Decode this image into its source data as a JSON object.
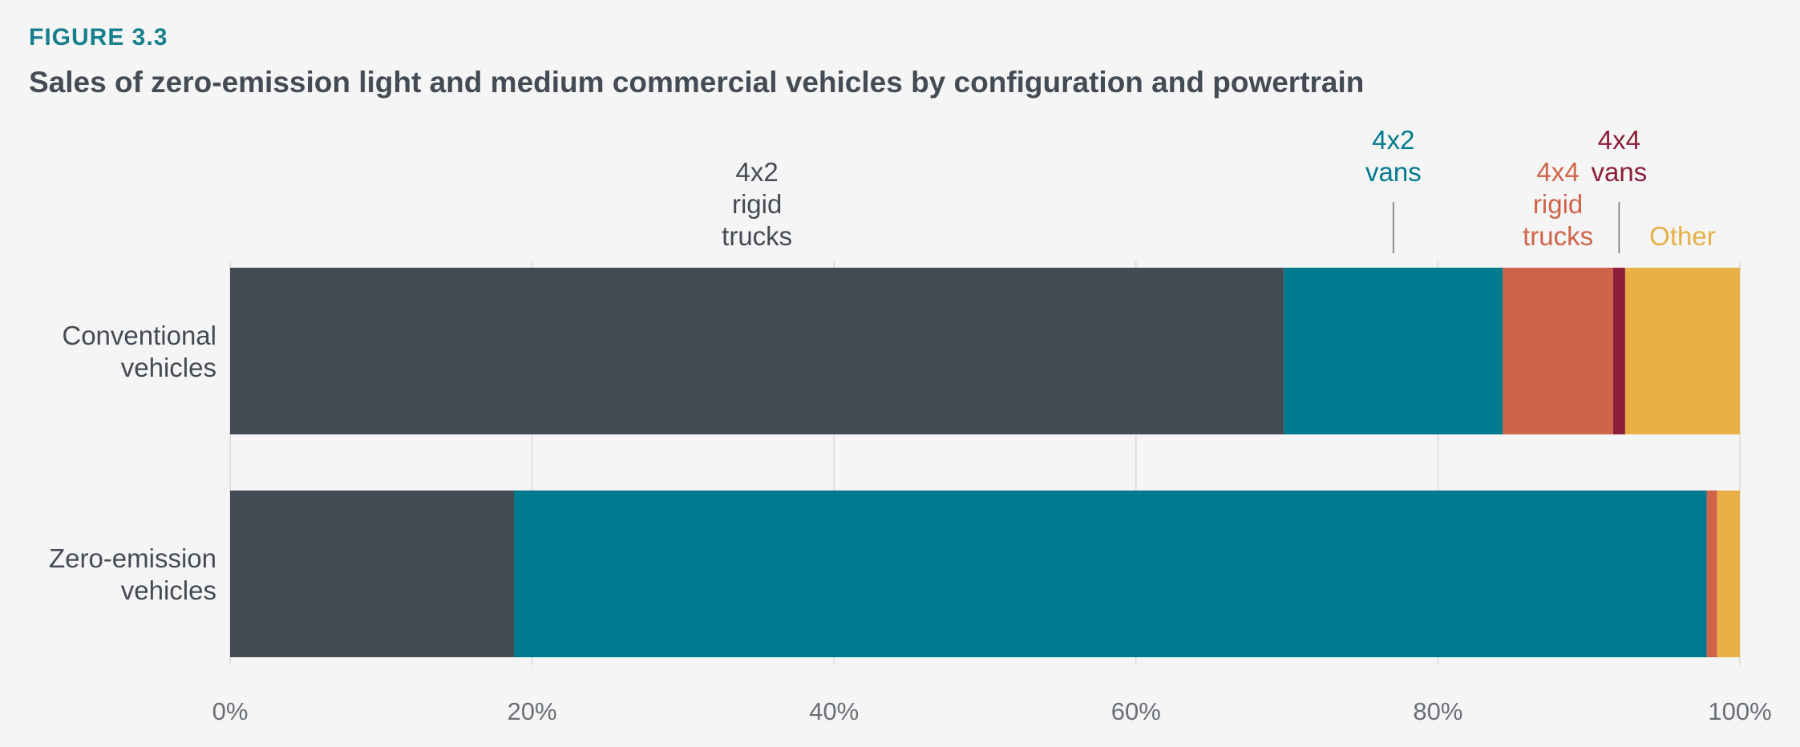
{
  "figure_label": "FIGURE 3.3",
  "title": "Sales of zero-emission light and medium commercial vehicles by configuration and powertrain",
  "chart_data": {
    "type": "bar",
    "orientation": "horizontal",
    "stacked": true,
    "title": "Sales of zero-emission light and medium commercial vehicles by configuration and powertrain",
    "xlabel": "",
    "ylabel": "",
    "xlim": [
      0,
      100
    ],
    "x_ticks": [
      "0%",
      "20%",
      "40%",
      "60%",
      "80%",
      "100%"
    ],
    "grid": true,
    "legend_placement": "above bars (direct labels)",
    "categories": [
      [
        "Conventional",
        "vehicles"
      ],
      [
        "Zero-emission",
        "vehicles"
      ]
    ],
    "series": [
      {
        "key": "rigid42",
        "label_lines": [
          "4x2",
          "rigid",
          "trucks"
        ],
        "color": "#454b54",
        "values": [
          69.8,
          18.8
        ]
      },
      {
        "key": "vans42",
        "label_lines": [
          "4x2",
          "vans"
        ],
        "color": "#007a8f",
        "values": [
          14.5,
          79.0
        ]
      },
      {
        "key": "rigid44",
        "label_lines": [
          "4x4",
          "rigid",
          "trucks"
        ],
        "color": "#d0644b",
        "values": [
          7.3,
          0.7
        ]
      },
      {
        "key": "vans44",
        "label_lines": [
          "4x4",
          "vans"
        ],
        "color": "#8b1e3a",
        "values": [
          0.8,
          0.0
        ]
      },
      {
        "key": "other",
        "label_lines": [
          "Other"
        ],
        "color": "#e8b045",
        "values": [
          7.6,
          1.5
        ]
      }
    ]
  }
}
